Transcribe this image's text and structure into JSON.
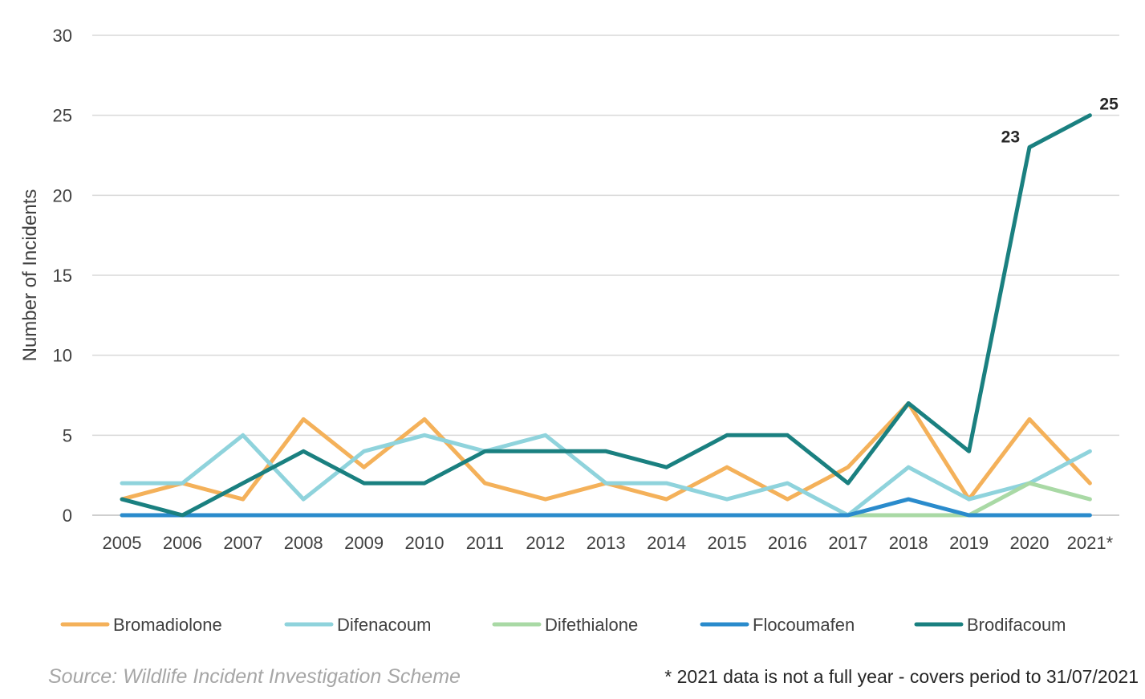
{
  "chart_data": {
    "type": "line",
    "title": "",
    "xlabel": "",
    "ylabel": "Number of Incidents",
    "ylim": [
      0,
      30
    ],
    "yticks": [
      0,
      5,
      10,
      15,
      20,
      25,
      30
    ],
    "grid": true,
    "legend_position": "bottom",
    "categories": [
      "2005",
      "2006",
      "2007",
      "2008",
      "2009",
      "2010",
      "2011",
      "2012",
      "2013",
      "2014",
      "2015",
      "2016",
      "2017",
      "2018",
      "2019",
      "2020",
      "2021*"
    ],
    "series": [
      {
        "name": "Bromadiolone",
        "color": "#f4b15a",
        "values": [
          1,
          2,
          1,
          6,
          3,
          6,
          2,
          1,
          2,
          1,
          3,
          1,
          3,
          7,
          1,
          6,
          2
        ]
      },
      {
        "name": "Difenacoum",
        "color": "#8fd3dc",
        "values": [
          2,
          2,
          5,
          1,
          4,
          5,
          4,
          5,
          2,
          2,
          1,
          2,
          0,
          3,
          1,
          2,
          4
        ]
      },
      {
        "name": "Difethialone",
        "color": "#a9d9a5",
        "values": [
          0,
          0,
          0,
          0,
          0,
          0,
          0,
          0,
          0,
          0,
          0,
          0,
          0,
          0,
          0,
          2,
          1
        ]
      },
      {
        "name": "Flocoumafen",
        "color": "#2a8bcc",
        "values": [
          0,
          0,
          0,
          0,
          0,
          0,
          0,
          0,
          0,
          0,
          0,
          0,
          0,
          1,
          0,
          0,
          0
        ]
      },
      {
        "name": "Brodifacoum",
        "color": "#1a8080",
        "values": [
          1,
          0,
          2,
          4,
          2,
          2,
          4,
          4,
          4,
          3,
          5,
          5,
          2,
          7,
          4,
          23,
          25
        ]
      }
    ],
    "annotations": [
      {
        "series": "Brodifacoum",
        "category": "2020",
        "text": "23"
      },
      {
        "series": "Brodifacoum",
        "category": "2021*",
        "text": "25"
      }
    ]
  },
  "footer": {
    "source": "Source: Wildlife Incident Investigation Scheme",
    "note": "* 2021 data is not a full year - covers period to 31/07/2021"
  }
}
